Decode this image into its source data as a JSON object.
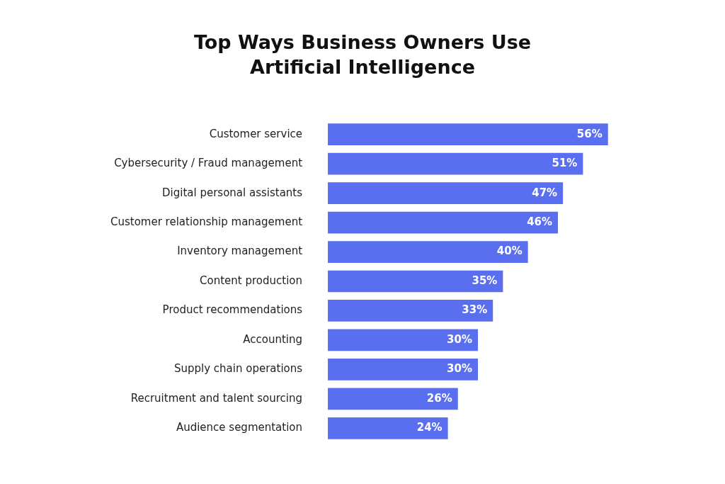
{
  "chart_data": {
    "type": "bar",
    "orientation": "horizontal",
    "title": "Top Ways Business Owners Use Artificial Intelligence",
    "categories": [
      "Customer service",
      "Cybersecurity / Fraud management",
      "Digital personal assistants",
      "Customer relationship management",
      "Inventory management",
      "Content production",
      "Product recommendations",
      "Accounting",
      "Supply chain operations",
      "Recruitment and talent sourcing",
      "Audience segmentation"
    ],
    "values": [
      56,
      51,
      47,
      46,
      40,
      35,
      33,
      30,
      30,
      26,
      24
    ],
    "value_labels": [
      "56%",
      "51%",
      "47%",
      "46%",
      "40%",
      "35%",
      "33%",
      "30%",
      "30%",
      "26%",
      "24%"
    ],
    "color": "#5a6ff0",
    "legend": false
  }
}
